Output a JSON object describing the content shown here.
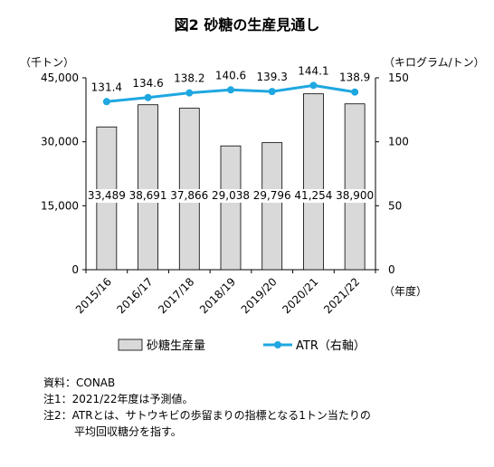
{
  "chart_data": {
    "type": "bar",
    "title": "図2 砂糖の生産見通し",
    "left_unit": "（千トン）",
    "right_unit": "（キログラム/トン）",
    "x_unit": "（年度）",
    "categories": [
      "2015/16",
      "2016/17",
      "2017/18",
      "2018/19",
      "2019/20",
      "2020/21",
      "2021/22"
    ],
    "series": [
      {
        "name": "砂糖生産量",
        "type": "bar",
        "axis": "left",
        "values": [
          33489,
          38691,
          37866,
          29038,
          29796,
          41254,
          38900
        ],
        "labels": [
          "33,489",
          "38,691",
          "37,866",
          "29,038",
          "29,796",
          "41,254",
          "38,900"
        ],
        "color": "#d9d9d9"
      },
      {
        "name": "ATR（右軸）",
        "type": "line",
        "axis": "right",
        "values": [
          131.4,
          134.6,
          138.2,
          140.6,
          139.3,
          144.1,
          138.9
        ],
        "labels": [
          "131.4",
          "134.6",
          "138.2",
          "140.6",
          "139.3",
          "144.1",
          "138.9"
        ],
        "color": "#1ea7e0"
      }
    ],
    "y_left": {
      "min": 0,
      "max": 45000,
      "ticks": [
        "0",
        "15,000",
        "30,000",
        "45,000"
      ]
    },
    "y_right": {
      "min": 0,
      "max": 150,
      "ticks": [
        "0",
        "50",
        "100",
        "150"
      ]
    },
    "grid": false,
    "legend": "bottom"
  },
  "notes": [
    "資料：CONAB",
    "注1：2021/22年度は予測値。",
    "注2：ATRとは、サトウキビの歩留まりの指標となる1トン当たりの",
    "平均回収糖分を指す。"
  ]
}
